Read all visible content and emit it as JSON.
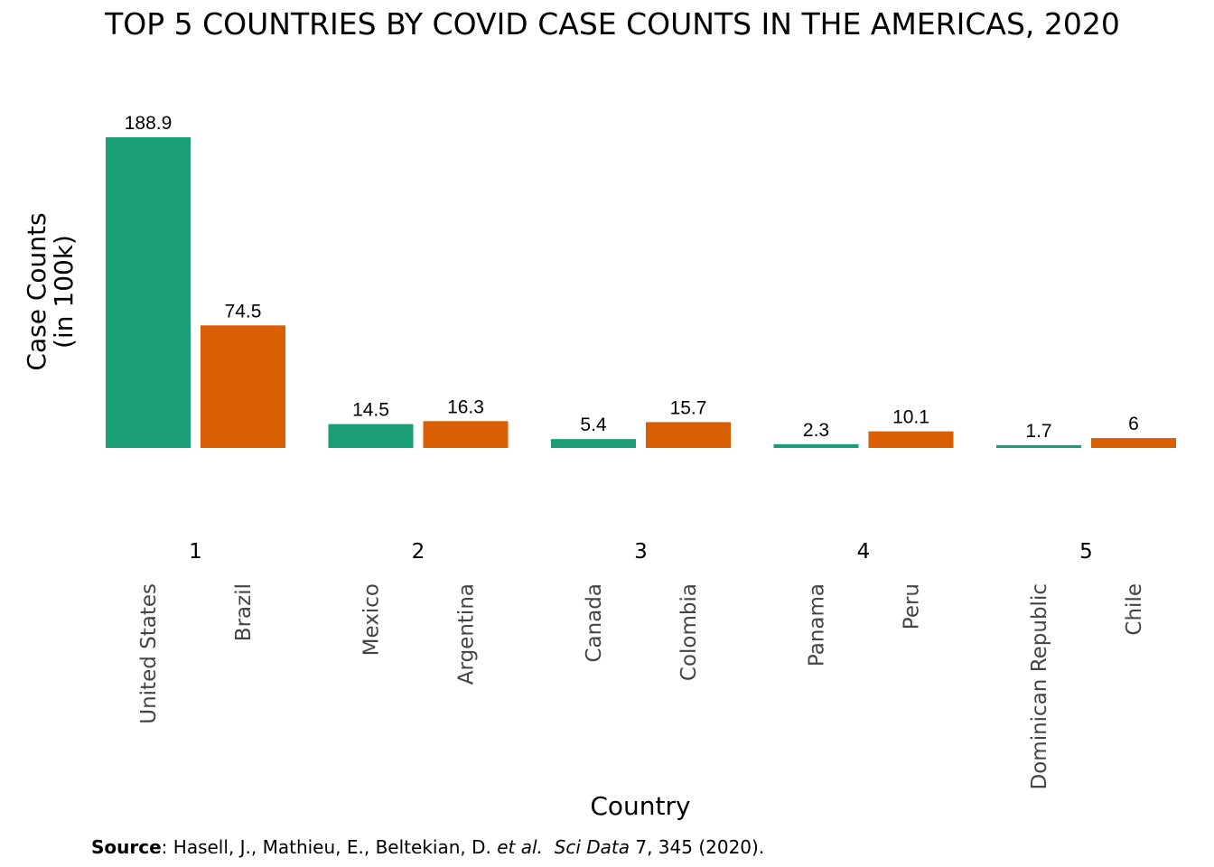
{
  "chart_data": {
    "type": "bar",
    "title": "TOP 5 COUNTRIES BY COVID CASE COUNTS IN THE AMERICAS, 2020",
    "xlabel": "Country",
    "ylabel_lines": [
      "Case Counts",
      "(in 100k)"
    ],
    "ylim": [
      0,
      188.9
    ],
    "groups": [
      {
        "rank": "1",
        "bars": [
          {
            "country": "United States",
            "value": 188.9,
            "label": "188.9"
          },
          {
            "country": "Brazil",
            "value": 74.5,
            "label": "74.5"
          }
        ]
      },
      {
        "rank": "2",
        "bars": [
          {
            "country": "Mexico",
            "value": 14.5,
            "label": "14.5"
          },
          {
            "country": "Argentina",
            "value": 16.3,
            "label": "16.3"
          }
        ]
      },
      {
        "rank": "3",
        "bars": [
          {
            "country": "Canada",
            "value": 5.4,
            "label": "5.4"
          },
          {
            "country": "Colombia",
            "value": 15.7,
            "label": "15.7"
          }
        ]
      },
      {
        "rank": "4",
        "bars": [
          {
            "country": "Panama",
            "value": 2.3,
            "label": "2.3"
          },
          {
            "country": "Peru",
            "value": 10.1,
            "label": "10.1"
          }
        ]
      },
      {
        "rank": "5",
        "bars": [
          {
            "country": "Dominican Republic",
            "value": 1.7,
            "label": "1.7"
          },
          {
            "country": "Chile",
            "value": 6,
            "label": "6"
          }
        ]
      }
    ],
    "colors": [
      "#1b9e77",
      "#d95f02"
    ],
    "grid": false,
    "legend": "none"
  },
  "source": {
    "label": "Source",
    "sep": ": ",
    "authors": "Hasell, J., Mathieu, E., Beltekian, D. ",
    "etal": "et al.",
    "gap": "  ",
    "journal": "Sci Data",
    "citation": " 7, 345 (2020)."
  }
}
